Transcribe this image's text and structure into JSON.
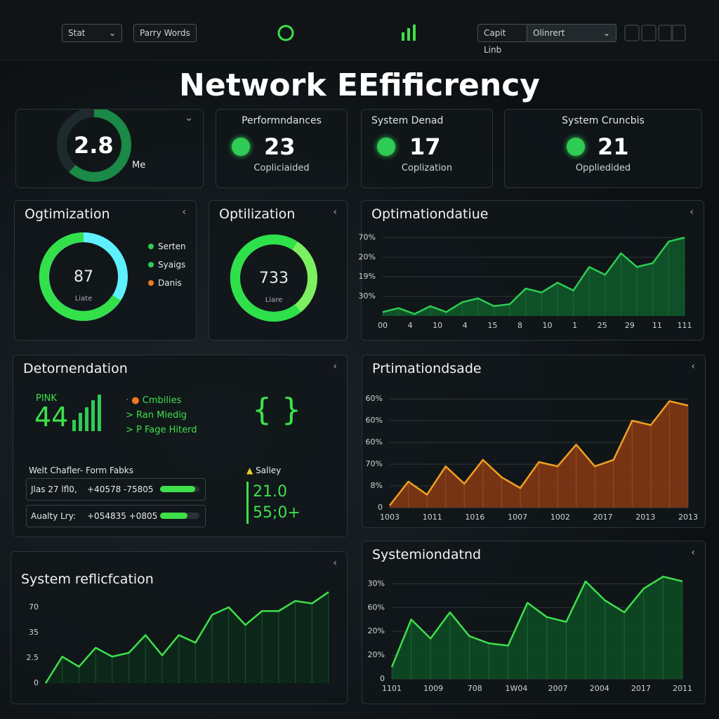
{
  "topbar": {
    "left_buttons": [
      "Stat",
      "Parry Words"
    ],
    "search": "Capit Linb",
    "dropdown": "Olinrert"
  },
  "title": "Network EEfificrency",
  "kpis": [
    {
      "value": 2.8,
      "label": "Me"
    },
    {
      "title": "Performndances",
      "value": 23,
      "label": "Copliciaided"
    },
    {
      "title": "System Denad",
      "value": 17,
      "label": "Coplization"
    },
    {
      "title": "System Cruncbis",
      "value": 21,
      "label": "Oppliedided"
    }
  ],
  "donuts": [
    {
      "title": "Ogtimization",
      "value": 87,
      "sub": "Liate",
      "legend": [
        {
          "name": "Serten",
          "color": "#2ecc55"
        },
        {
          "name": "Syaigs",
          "color": "#2ecc55"
        },
        {
          "name": "Danis",
          "color": "#f07820"
        }
      ]
    },
    {
      "title": "Optilization",
      "value": 733,
      "sub": "Liare"
    }
  ],
  "detail": {
    "title": "Detornendation",
    "tag": "PINK",
    "big": 44,
    "list": [
      "Cmbilies",
      "Ran Miedig",
      "P Fage Hiterd"
    ],
    "table_title": "Welt Chafler- Form Fabks",
    "rows": [
      [
        "Jlas 27 lfl0,",
        "+40578 -75805"
      ],
      [
        "Aualty Lry:",
        "+054835 +0805"
      ]
    ],
    "side_title": "Salley",
    "side_values": [
      "21.0",
      "55;0+"
    ]
  },
  "charts": [
    {
      "type": "area",
      "title": "Optimationdatiue",
      "color": "#2ecc55",
      "fill": "#0f5a2c",
      "values": [
        0.2,
        0.4,
        0.1,
        0.5,
        0.2,
        0.7,
        0.9,
        0.5,
        0.6,
        1.4,
        1.2,
        1.7,
        1.3,
        2.5,
        2.1,
        3.2,
        2.5,
        2.7,
        3.8,
        4.0
      ],
      "ylim": [
        0,
        4.3
      ],
      "yticks": [
        {
          "value": 1,
          "label": "30%"
        },
        {
          "value": 2,
          "label": "19%"
        },
        {
          "value": 3,
          "label": "20%"
        },
        {
          "value": 4,
          "label": "70%"
        }
      ],
      "xlabels": [
        "00",
        "4",
        "10",
        "4",
        "15",
        "8",
        "10",
        "1",
        "25",
        "29",
        "11",
        "111"
      ],
      "grid": true
    },
    {
      "type": "area",
      "title": "Prtimationdsade",
      "color": "#f0a020",
      "fill": "#8a3a15",
      "values": [
        0.1,
        1.2,
        0.6,
        1.9,
        1.1,
        2.2,
        1.4,
        0.9,
        2.1,
        1.9,
        2.9,
        1.9,
        2.2,
        4.0,
        3.8,
        4.9,
        4.7
      ],
      "ylim": [
        0,
        5.2
      ],
      "yticks": [
        0,
        {
          "value": 1,
          "label": "8%"
        },
        {
          "value": 2,
          "label": "70%"
        },
        {
          "value": 3,
          "label": "60%"
        },
        {
          "value": 4,
          "label": "60%"
        },
        {
          "value": 5,
          "label": "60%"
        }
      ],
      "xlabels": [
        "1003",
        "1011",
        "1016",
        "1007",
        "1002",
        "2017",
        "2013",
        "2013"
      ],
      "grid": true
    },
    {
      "type": "area",
      "title": "System reflicfcation",
      "color": "#3ee04a",
      "fill": "#0c2a1a",
      "values": [
        0,
        1.05,
        0.65,
        1.4,
        1.05,
        1.2,
        1.9,
        1.1,
        1.9,
        1.6,
        2.7,
        3.0,
        2.3,
        2.85,
        2.85,
        3.25,
        3.15,
        3.6
      ],
      "ylim": [
        0,
        3.8
      ],
      "yticks": [
        0,
        {
          "value": 1,
          "label": "2.5"
        },
        {
          "value": 2,
          "label": "35"
        },
        {
          "value": 3,
          "label": "70"
        }
      ],
      "xlabels": [],
      "grid": false
    },
    {
      "type": "area",
      "title": "Systemiondatnd",
      "color": "#3ee04a",
      "fill": "#0d4d24",
      "values": [
        0.5,
        2.5,
        1.7,
        2.8,
        1.8,
        1.5,
        1.4,
        3.2,
        2.6,
        2.4,
        4.1,
        3.3,
        2.8,
        3.8,
        4.3,
        4.1
      ],
      "ylim": [
        0,
        4.6
      ],
      "yticks": [
        0,
        {
          "value": 1,
          "label": "20%"
        },
        {
          "value": 2,
          "label": "20%"
        },
        {
          "value": 3,
          "label": "60%"
        },
        {
          "value": 4,
          "label": "30%"
        }
      ],
      "xlabels": [
        "1101",
        "1009",
        "708",
        "1W04",
        "2007",
        "2004",
        "2017",
        "2011"
      ],
      "grid": true
    }
  ]
}
